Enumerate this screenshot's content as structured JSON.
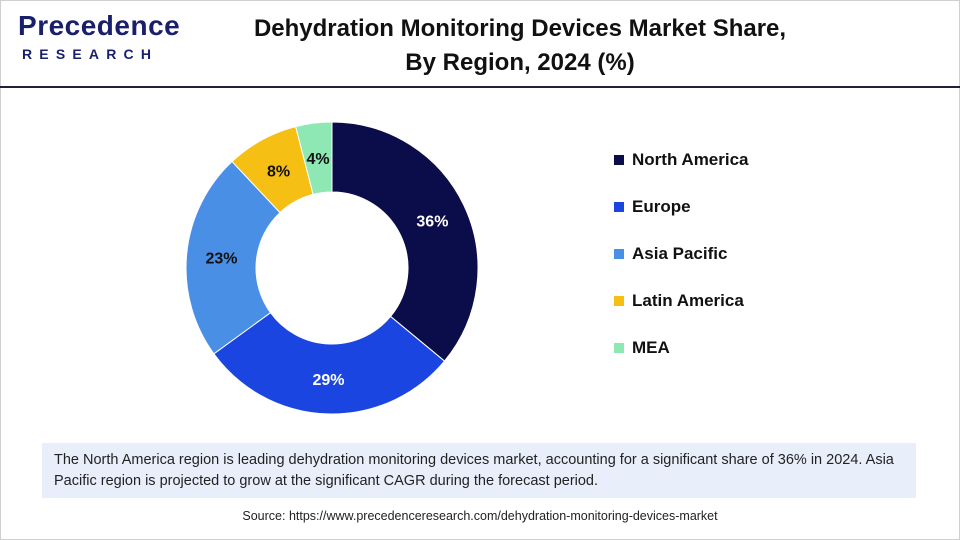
{
  "brand": {
    "logo_word": "recedence",
    "logo_initial": "P",
    "logo_sub": "RESEARCH"
  },
  "header": {
    "title_line1": "Dehydration Monitoring Devices Market Share,",
    "title_line2": "By Region, 2024 (%)"
  },
  "chart_data": {
    "type": "pie",
    "donut": true,
    "title": "Dehydration Monitoring Devices Market Share, By Region, 2024 (%)",
    "categories": [
      "North America",
      "Europe",
      "Asia Pacific",
      "Latin America",
      "MEA"
    ],
    "values": [
      36,
      29,
      23,
      8,
      4
    ],
    "labels": [
      "36%",
      "29%",
      "23%",
      "8%",
      "4%"
    ],
    "colors": [
      "#0b0c4a",
      "#1b45e0",
      "#4a8fe6",
      "#f5bf14",
      "#8ee8b4"
    ],
    "label_colors": [
      "#ffffff",
      "#ffffff",
      "#111111",
      "#111111",
      "#111111"
    ],
    "legend_position": "right"
  },
  "note": {
    "text": "The North America region is leading dehydration monitoring devices market, accounting for a significant share of 36% in 2024. Asia Pacific region is projected to grow at the significant CAGR during the forecast period."
  },
  "source": {
    "text": "Source: https://www.precedenceresearch.com/dehydration-monitoring-devices-market"
  }
}
